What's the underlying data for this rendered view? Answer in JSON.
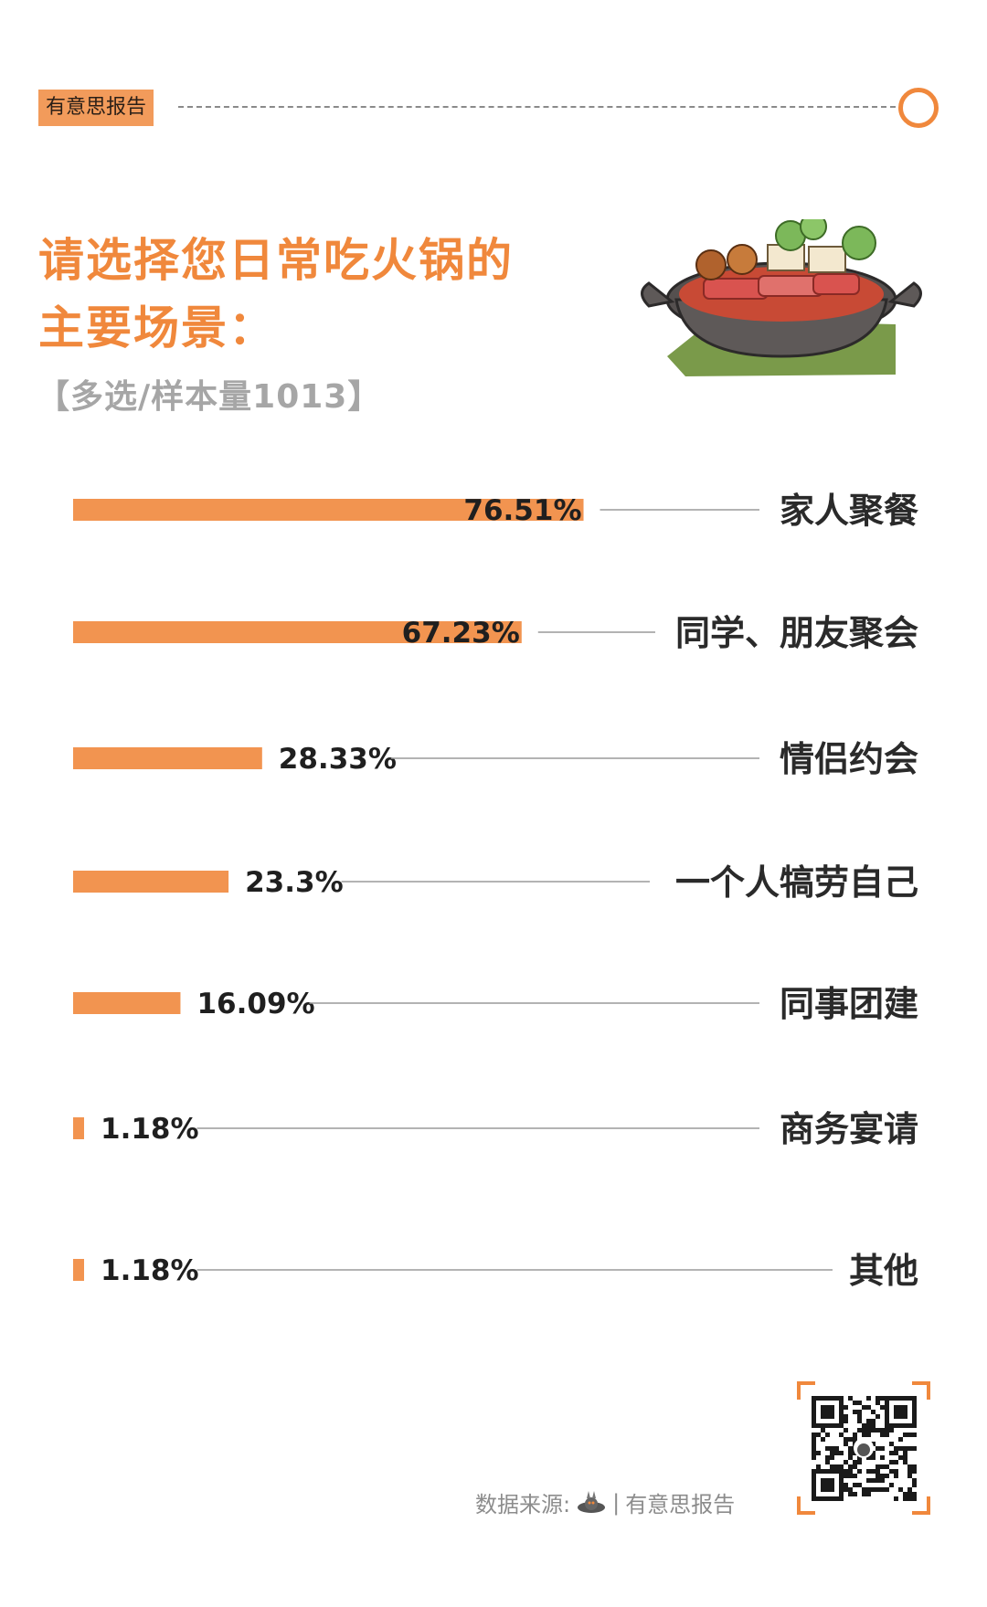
{
  "header": {
    "tag": "有意思报告"
  },
  "title_lines": [
    "请选择您日常吃火锅的",
    "主要场景："
  ],
  "subtitle": "【多选/样本量1013】",
  "footer": {
    "source_label": "数据来源:",
    "source_name": "有意思报告"
  },
  "colors": {
    "accent": "#f0883c",
    "bar": "#f29450",
    "grey_line": "#9a9a9a"
  },
  "chart_data": {
    "type": "bar",
    "orientation": "horizontal",
    "categories": [
      "家人聚餐",
      "同学、朋友聚会",
      "情侣约会",
      "一个人犒劳自己",
      "同事团建",
      "商务宴请",
      "其他"
    ],
    "values": [
      76.51,
      67.23,
      28.33,
      23.3,
      16.09,
      1.18,
      1.18
    ],
    "value_labels": [
      "76.51%",
      "67.23%",
      "28.33%",
      "23.3%",
      "16.09%",
      "1.18%",
      "1.18%"
    ],
    "title": "请选择您日常吃火锅的主要场景：",
    "xlabel": "",
    "ylabel": "",
    "grid": false
  }
}
